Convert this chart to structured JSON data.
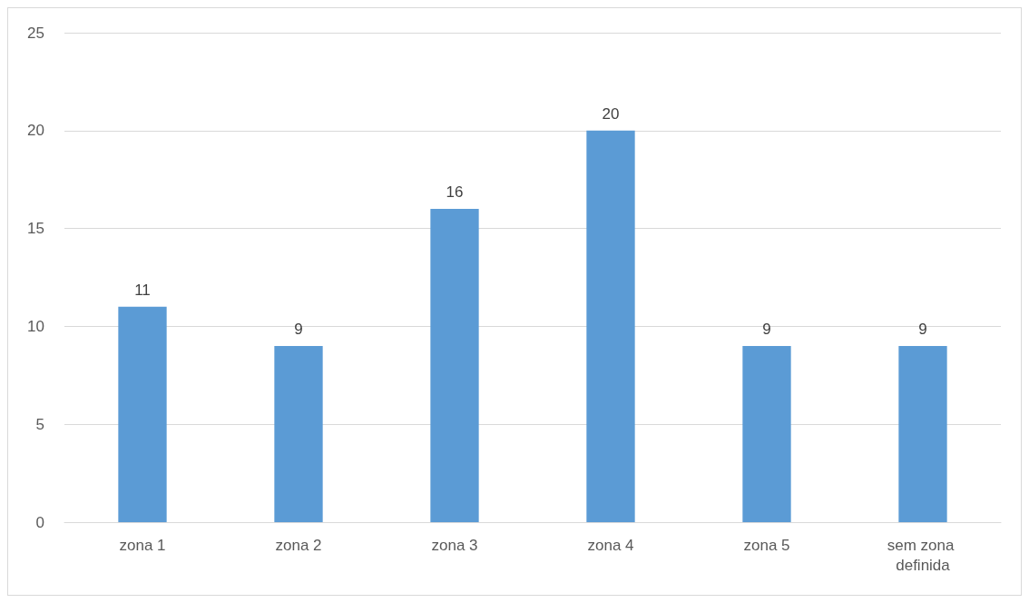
{
  "chart_data": {
    "type": "bar",
    "categories": [
      "zona 1",
      "zona 2",
      "zona 3",
      "zona 4",
      "zona 5",
      "sem zona definida"
    ],
    "values": [
      11,
      9,
      16,
      20,
      9,
      9
    ],
    "color": "#5b9bd5",
    "ylim": [
      0,
      25
    ],
    "yticks": [
      0,
      5,
      10,
      15,
      20,
      25
    ],
    "grid": "y",
    "data_labels": true
  }
}
